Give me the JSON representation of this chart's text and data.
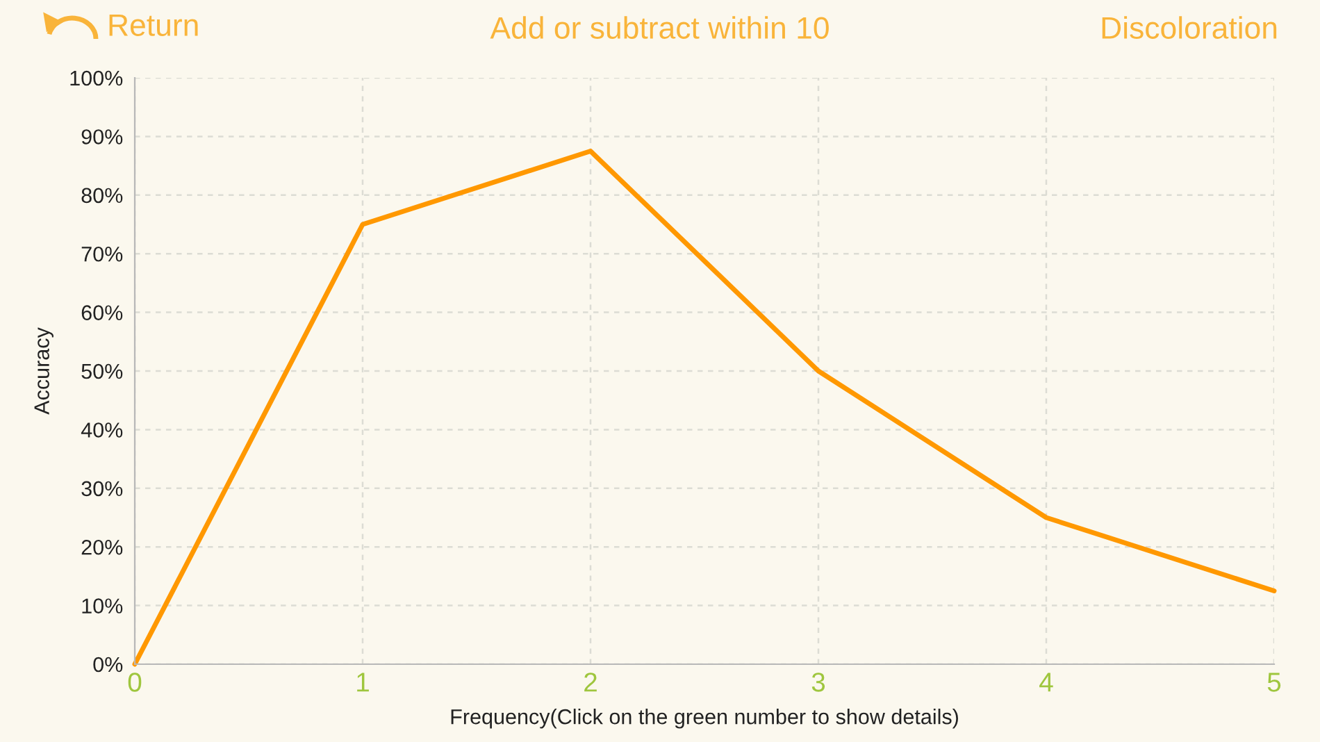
{
  "chart_data": {
    "type": "line",
    "title": "Add or subtract within 10",
    "annotations": [
      "Return",
      "Discoloration"
    ],
    "xlabel": "Frequency(Click on the green number to show details)",
    "ylabel": "Accuracy",
    "x": [
      0,
      1,
      2,
      3,
      4,
      5
    ],
    "series": [
      {
        "values": [
          0,
          75,
          87.5,
          50,
          25,
          12.5
        ],
        "color": "#ff9800"
      }
    ],
    "xlim": [
      0,
      5
    ],
    "xticks": [
      0,
      1,
      2,
      3,
      4,
      5
    ],
    "ylim": [
      0,
      100
    ],
    "yticks": [
      {
        "value": 0,
        "label": "0%"
      },
      {
        "value": 10,
        "label": "10%"
      },
      {
        "value": 20,
        "label": "20%"
      },
      {
        "value": 30,
        "label": "30%"
      },
      {
        "value": 40,
        "label": "40%"
      },
      {
        "value": 50,
        "label": "50%"
      },
      {
        "value": 60,
        "label": "60%"
      },
      {
        "value": 70,
        "label": "70%"
      },
      {
        "value": 80,
        "label": "80%"
      },
      {
        "value": 90,
        "label": "90%"
      },
      {
        "value": 100,
        "label": "100%"
      }
    ],
    "grid": true,
    "line_style": "solid",
    "marker": "none"
  }
}
